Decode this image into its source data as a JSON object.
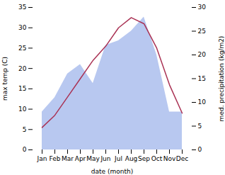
{
  "chart_data": {
    "type": "line",
    "xlabel": "date (month)",
    "ylabel": "max temp (C)",
    "y2label": "med. precipitation (kg/m2)",
    "categories": [
      "Jan",
      "Feb",
      "Mar",
      "Apr",
      "May",
      "Jun",
      "Jul",
      "Aug",
      "Sep",
      "Oct",
      "Nov",
      "Dec"
    ],
    "series": [
      {
        "type": "area",
        "axis": "y2",
        "color": "#b8c8f0",
        "values": [
          8,
          11,
          16,
          18,
          14,
          22,
          23,
          25,
          28,
          20,
          8,
          8
        ]
      },
      {
        "type": "line",
        "color": "#aa3355",
        "values": [
          5.5,
          8.5,
          13.0,
          17.5,
          22.0,
          25.5,
          30.0,
          32.5,
          31.0,
          25.0,
          16.0,
          9.0
        ]
      }
    ],
    "ylim": [
      0,
      35
    ],
    "yticks": [
      0,
      5,
      10,
      15,
      20,
      25,
      30,
      35
    ],
    "y2lim": [
      0,
      30
    ],
    "y2ticks": [
      0,
      5,
      10,
      15,
      20,
      25,
      30
    ]
  }
}
